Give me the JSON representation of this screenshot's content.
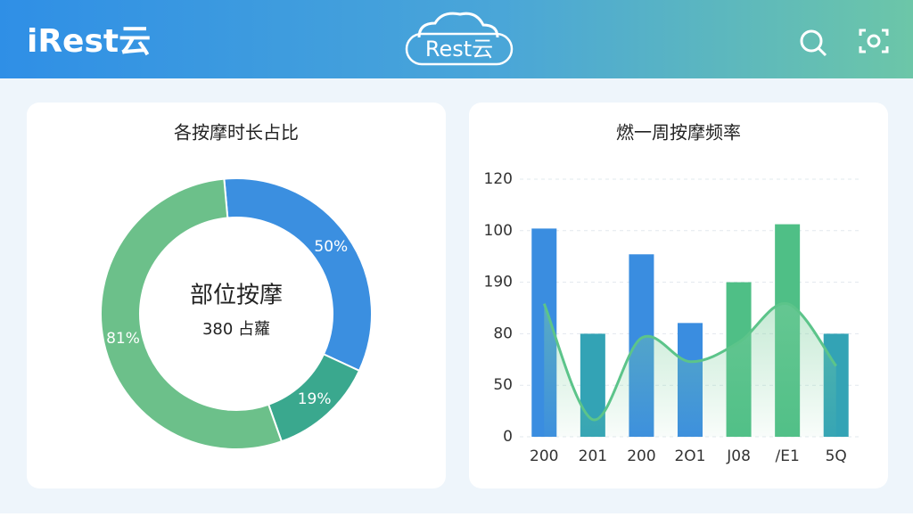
{
  "header": {
    "title": "iRest云",
    "logo": "Rest云"
  },
  "chart_data": [
    {
      "type": "donut",
      "title": "各按摩时长占比",
      "center_title": "部位按摩",
      "center_subtitle": "380 占蘿",
      "values": [
        50,
        19,
        81
      ],
      "value_labels": [
        "50%",
        "19%",
        "81%"
      ],
      "colors": [
        "#3b8fe0",
        "#3aa88e",
        "#6cc08a"
      ]
    },
    {
      "type": "bar",
      "title": "燃一周按摩频率",
      "categories": [
        "200",
        "201",
        "200",
        "2O1",
        "J08",
        "/E1",
        "5Q"
      ],
      "values": [
        97,
        48,
        85,
        53,
        72,
        99,
        48
      ],
      "colors": [
        "#3a8de0",
        "#33a3b5",
        "#3a8de0",
        "#3a8de0",
        "#4fbf86",
        "#4fbf86",
        "#33a3b5"
      ],
      "line": {
        "color": "#5cc48a",
        "values": [
          62,
          8,
          46,
          35,
          44,
          62,
          33
        ]
      },
      "ylim": [
        0,
        120
      ],
      "yticks": [
        0,
        {
          "value": 24,
          "label": "50"
        },
        {
          "value": 48,
          "label": "80"
        },
        {
          "value": 72,
          "label": "190"
        },
        {
          "value": 96,
          "label": "100"
        },
        120
      ],
      "grid": true
    }
  ]
}
